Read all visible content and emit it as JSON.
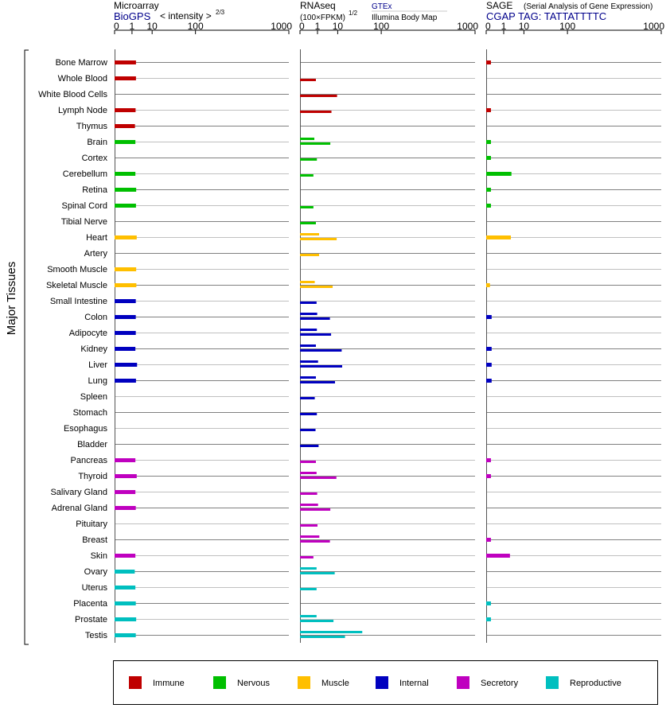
{
  "chart_data": {
    "type": "bar",
    "orientation": "horizontal",
    "group_label": "Major Tissues",
    "tick_labels": [
      "0",
      "1",
      "10",
      "100",
      "1000"
    ],
    "tick_values": [
      0,
      1,
      10,
      100,
      1000
    ],
    "panels": [
      {
        "key": "microarray",
        "title": "Microarray",
        "source": "BioGPS",
        "scale_label": "< intensity >",
        "scale_exponent": "2/3",
        "values": [
          1.85,
          1.85,
          null,
          1.75,
          1.6,
          1.7,
          null,
          1.7,
          1.9,
          1.85,
          null,
          2.05,
          null,
          1.9,
          1.95,
          1.8,
          1.8,
          1.8,
          1.7,
          2.15,
          1.85,
          null,
          null,
          null,
          null,
          1.7,
          2.05,
          1.7,
          1.8,
          null,
          null,
          1.7,
          1.55,
          1.7,
          1.8,
          1.9,
          1.8
        ]
      },
      {
        "key": "rnaseq",
        "title": "RNAseq",
        "scale_label": "(100×FPKM)",
        "scale_exponent": "1/2",
        "sources": [
          "GTEx",
          "Illumina Body Map"
        ],
        "values": [
          [
            null,
            null
          ],
          [
            null,
            0.75
          ],
          [
            null,
            9.5
          ],
          [
            null,
            5.8
          ],
          [
            null,
            null
          ],
          [
            0.55,
            5.2
          ],
          [
            null,
            0.9
          ],
          [
            null,
            0.45
          ],
          [
            null,
            null
          ],
          [
            null,
            0.45
          ],
          [
            null,
            0.75
          ],
          [
            1.3,
            9.2
          ],
          [
            null,
            1.3
          ],
          [
            null,
            null
          ],
          [
            0.6,
            6.5
          ],
          [
            null,
            0.85
          ],
          [
            0.95,
            5.0
          ],
          [
            0.9,
            5.6
          ],
          [
            0.75,
            13.5
          ],
          [
            1.1,
            14.0
          ],
          [
            0.75,
            8.0
          ],
          [
            null,
            0.6
          ],
          [
            null,
            0.9
          ],
          [
            null,
            0.7
          ],
          [
            null,
            1.2
          ],
          [
            null,
            0.75
          ],
          [
            0.85,
            9.0
          ],
          [
            null,
            0.95
          ],
          [
            1.1,
            5.2
          ],
          [
            null,
            1.0
          ],
          [
            1.35,
            5.0
          ],
          [
            null,
            0.45
          ],
          [
            0.85,
            7.8
          ],
          [
            null,
            0.85
          ],
          [
            null,
            null
          ],
          [
            0.85,
            7.0
          ],
          [
            45.0,
            17.0
          ]
        ]
      },
      {
        "key": "sage",
        "title": "SAGE",
        "subtitle": "(Serial Analysis of Gene Expression)",
        "source": "CGAP TAG: TATTATTTTC",
        "values": [
          0.02,
          null,
          null,
          0.02,
          null,
          0.02,
          0.02,
          3.0,
          0.02,
          0.02,
          null,
          2.8,
          null,
          null,
          0.01,
          null,
          0.03,
          null,
          0.03,
          0.03,
          0.03,
          null,
          null,
          null,
          null,
          0.02,
          0.02,
          null,
          null,
          null,
          0.02,
          2.5,
          null,
          null,
          0.02,
          0.02,
          null
        ]
      }
    ],
    "tissues": [
      {
        "name": "Bone Marrow",
        "group": "Immune"
      },
      {
        "name": "Whole Blood",
        "group": "Immune"
      },
      {
        "name": "White Blood Cells",
        "group": "Immune"
      },
      {
        "name": "Lymph Node",
        "group": "Immune"
      },
      {
        "name": "Thymus",
        "group": "Immune"
      },
      {
        "name": "Brain",
        "group": "Nervous"
      },
      {
        "name": "Cortex",
        "group": "Nervous"
      },
      {
        "name": "Cerebellum",
        "group": "Nervous"
      },
      {
        "name": "Retina",
        "group": "Nervous"
      },
      {
        "name": "Spinal Cord",
        "group": "Nervous"
      },
      {
        "name": "Tibial Nerve",
        "group": "Nervous"
      },
      {
        "name": "Heart",
        "group": "Muscle"
      },
      {
        "name": "Artery",
        "group": "Muscle"
      },
      {
        "name": "Smooth Muscle",
        "group": "Muscle"
      },
      {
        "name": "Skeletal Muscle",
        "group": "Muscle"
      },
      {
        "name": "Small Intestine",
        "group": "Internal"
      },
      {
        "name": "Colon",
        "group": "Internal"
      },
      {
        "name": "Adipocyte",
        "group": "Internal"
      },
      {
        "name": "Kidney",
        "group": "Internal"
      },
      {
        "name": "Liver",
        "group": "Internal"
      },
      {
        "name": "Lung",
        "group": "Internal"
      },
      {
        "name": "Spleen",
        "group": "Internal"
      },
      {
        "name": "Stomach",
        "group": "Internal"
      },
      {
        "name": "Esophagus",
        "group": "Internal"
      },
      {
        "name": "Bladder",
        "group": "Internal"
      },
      {
        "name": "Pancreas",
        "group": "Secretory"
      },
      {
        "name": "Thyroid",
        "group": "Secretory"
      },
      {
        "name": "Salivary Gland",
        "group": "Secretory"
      },
      {
        "name": "Adrenal Gland",
        "group": "Secretory"
      },
      {
        "name": "Pituitary",
        "group": "Secretory"
      },
      {
        "name": "Breast",
        "group": "Secretory"
      },
      {
        "name": "Skin",
        "group": "Secretory"
      },
      {
        "name": "Ovary",
        "group": "Reproductive"
      },
      {
        "name": "Uterus",
        "group": "Reproductive"
      },
      {
        "name": "Placenta",
        "group": "Reproductive"
      },
      {
        "name": "Prostate",
        "group": "Reproductive"
      },
      {
        "name": "Testis",
        "group": "Reproductive"
      }
    ],
    "legend": [
      {
        "name": "Immune",
        "color": "#bf0000"
      },
      {
        "name": "Nervous",
        "color": "#00bf00"
      },
      {
        "name": "Muscle",
        "color": "#ffbf00"
      },
      {
        "name": "Internal",
        "color": "#0000bf"
      },
      {
        "name": "Secretory",
        "color": "#bf00bf"
      },
      {
        "name": "Reproductive",
        "color": "#00bfbf"
      }
    ],
    "legend_placement": "bottom"
  }
}
